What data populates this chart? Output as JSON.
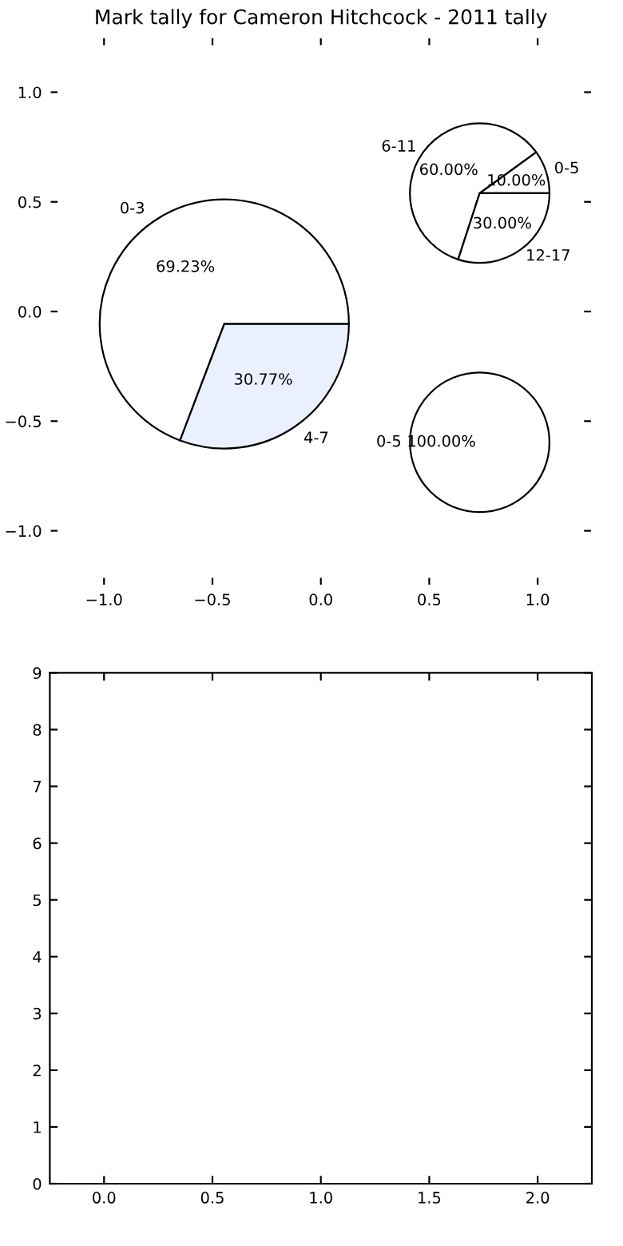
{
  "chart_data": [
    {
      "type": "scatter",
      "title": "Mark tally for Cameron Hitchcock - 2011 tally",
      "xlim": [
        -1.25,
        1.25
      ],
      "ylim": [
        -1.25,
        1.25
      ],
      "xticks": [
        {
          "value": -1,
          "label": "−1.0"
        },
        {
          "value": -0.5,
          "label": "−0.5"
        },
        {
          "value": 0,
          "label": "0.0"
        },
        {
          "value": 0.5,
          "label": "0.5"
        },
        {
          "value": 1,
          "label": "1.0"
        }
      ],
      "yticks": [
        {
          "value": -1,
          "label": "−1.0"
        },
        {
          "value": -0.5,
          "label": "−0.5"
        },
        {
          "value": 0,
          "label": "0.0"
        },
        {
          "value": 0.5,
          "label": "0.5"
        },
        {
          "value": 1,
          "label": "1.0"
        }
      ]
    },
    {
      "type": "pie",
      "categories": [
        "0-3",
        "4-7"
      ],
      "values": [
        69.23,
        30.77
      ],
      "value_labels": [
        "69.23%",
        "30.77%"
      ],
      "colors": [
        "#ffffff",
        "#eaf0fd"
      ]
    },
    {
      "type": "pie",
      "categories": [
        "0-5",
        "6-11",
        "12-17"
      ],
      "values": [
        10,
        60,
        30
      ],
      "value_labels": [
        "10.00%",
        "60.00%",
        "30.00%"
      ],
      "colors": [
        "#ffffff",
        "#ffffff",
        "#ffffff"
      ]
    },
    {
      "type": "pie",
      "categories": [
        "0-5"
      ],
      "values": [
        100
      ],
      "value_labels": [
        "100.00%"
      ],
      "colors": [
        "#ffffff"
      ]
    },
    {
      "type": "scatter",
      "xlim": [
        -0.25,
        2.25
      ],
      "ylim": [
        0,
        9
      ],
      "xticks": [
        {
          "value": 0,
          "label": "0.0"
        },
        {
          "value": 0.5,
          "label": "0.5"
        },
        {
          "value": 1,
          "label": "1.0"
        },
        {
          "value": 1.5,
          "label": "1.5"
        },
        {
          "value": 2,
          "label": "2.0"
        }
      ],
      "yticks": [
        0,
        1,
        2,
        3,
        4,
        5,
        6,
        7,
        8,
        9
      ]
    }
  ]
}
